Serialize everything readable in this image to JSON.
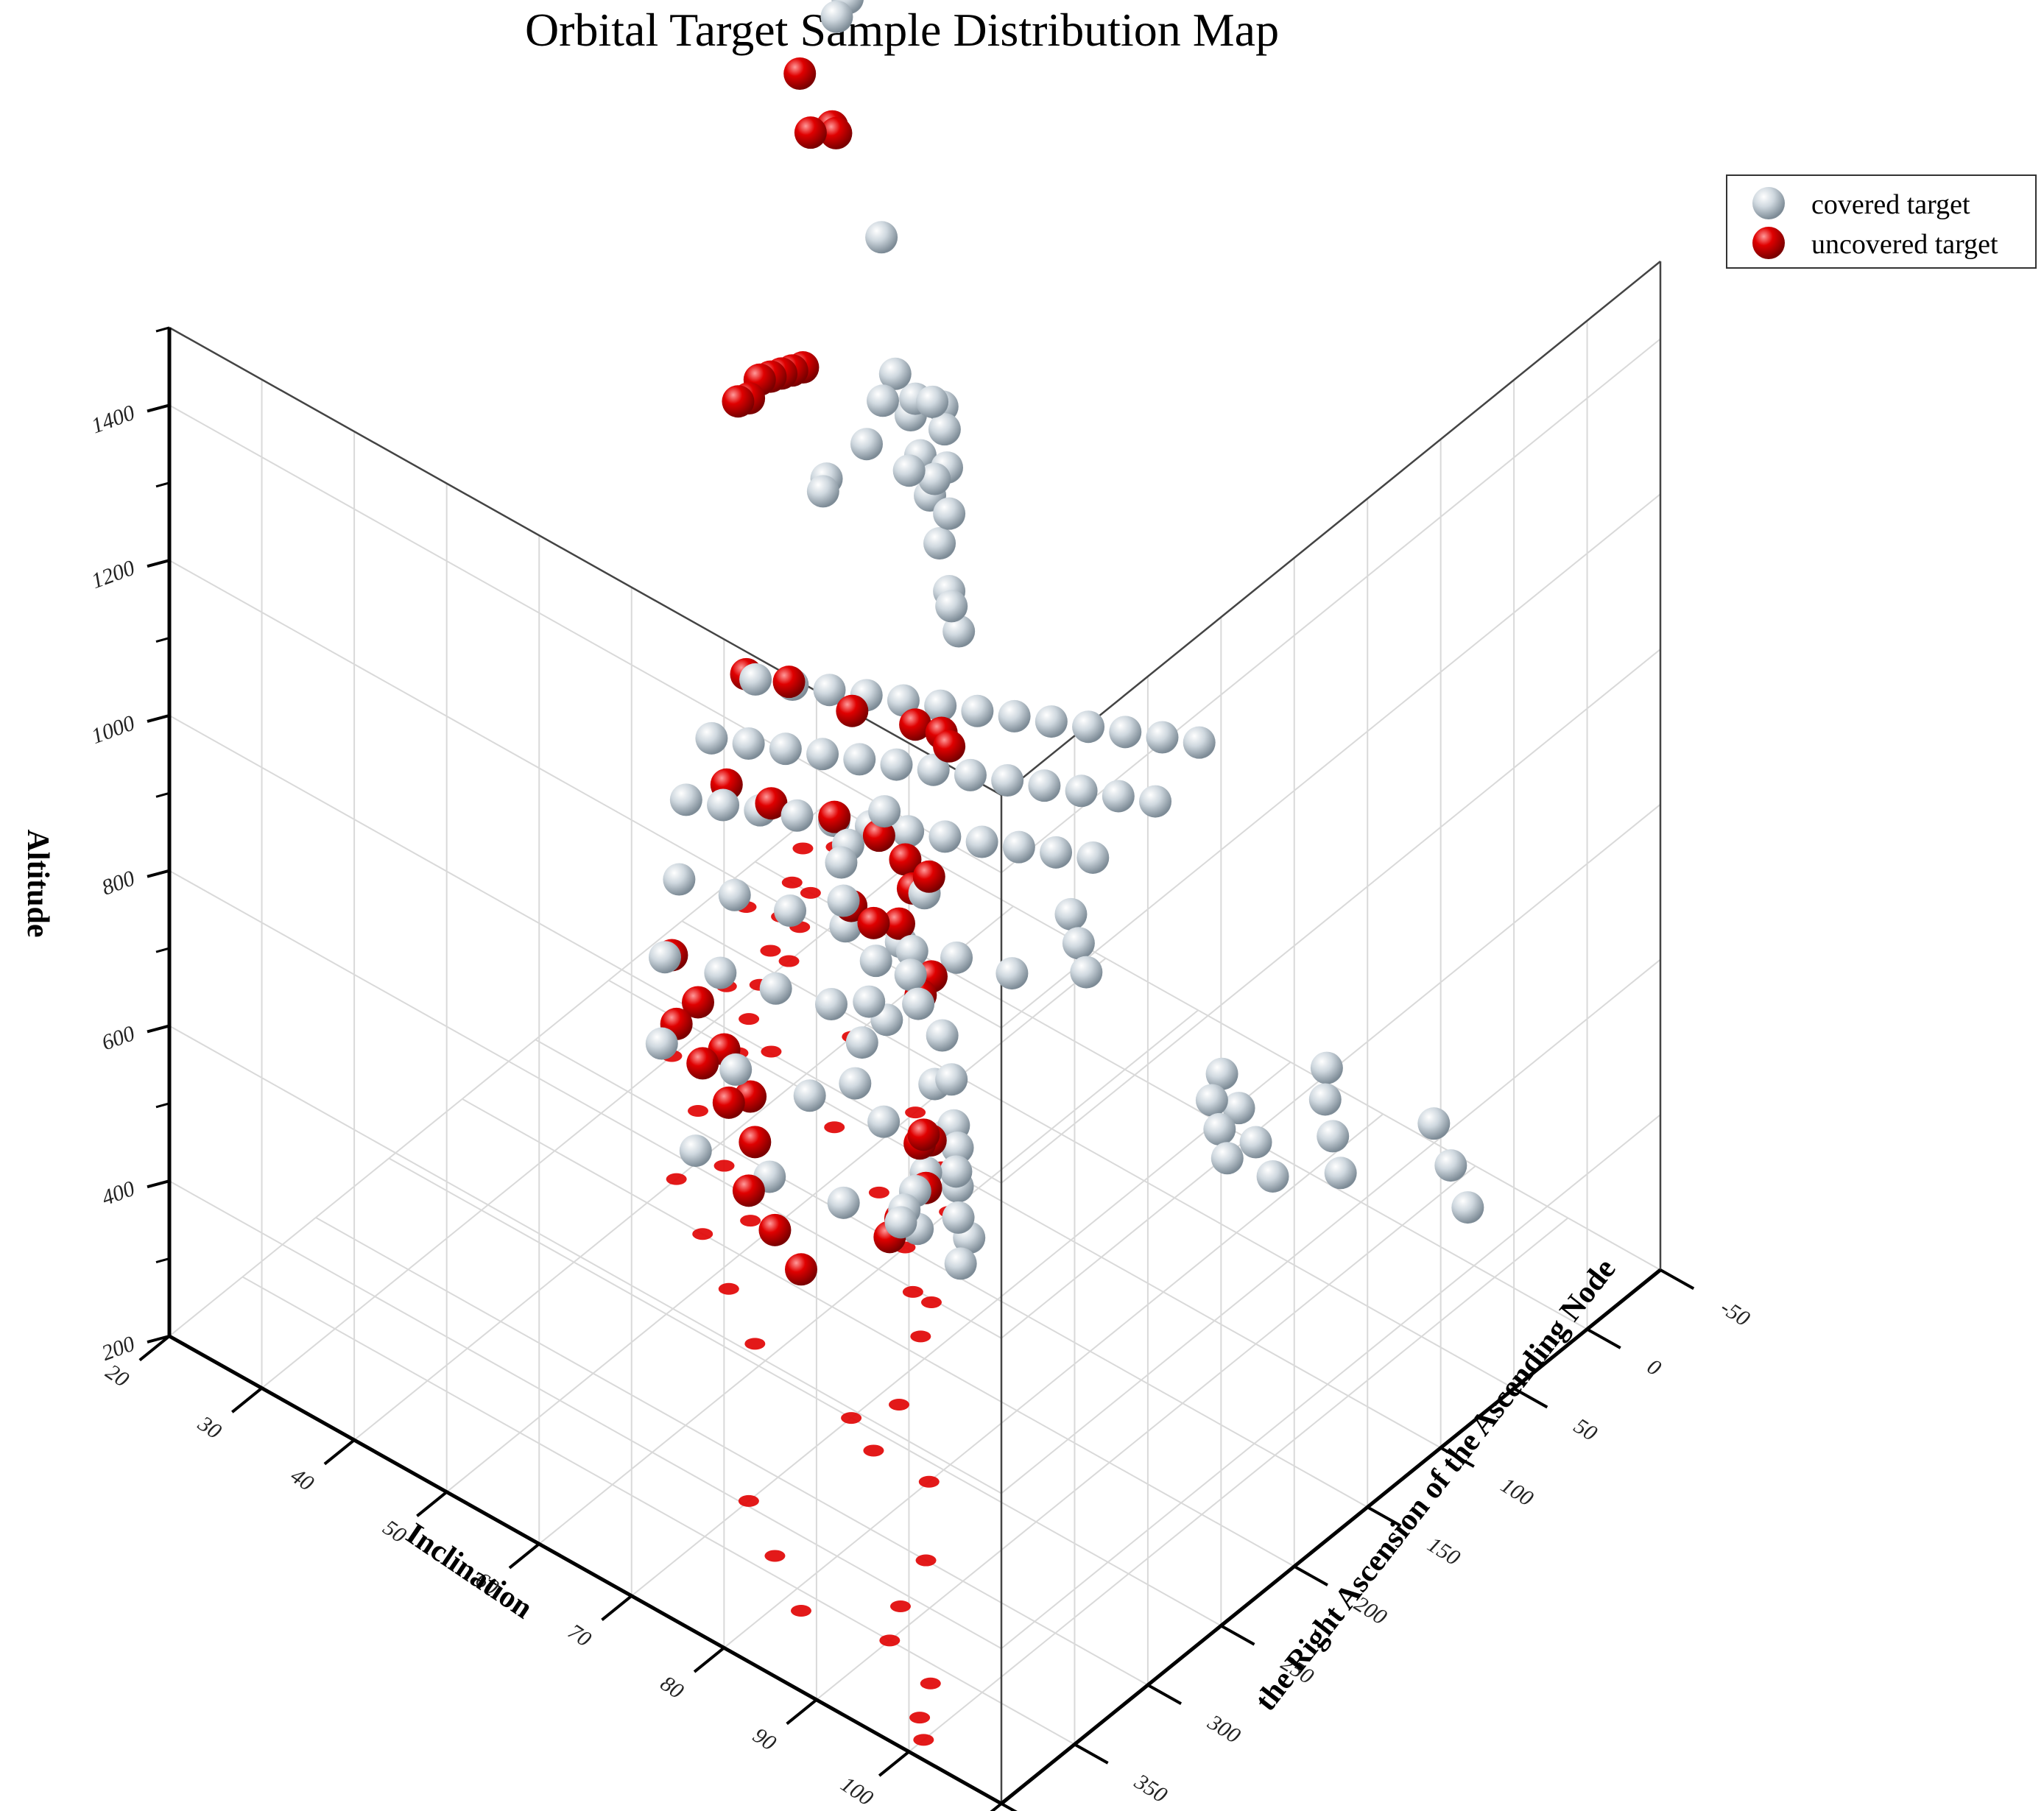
{
  "chart_data": {
    "type": "scatter",
    "subtype": "3d-scatter",
    "title": "Orbital Target Sample Distribution Map",
    "axes": {
      "x": {
        "label": "Inclination",
        "range": [
          20,
          110
        ],
        "ticks": [
          "20",
          "30",
          "40",
          "50",
          "60",
          "70",
          "80",
          "90",
          "100",
          "110"
        ]
      },
      "y": {
        "label": "the Right Ascension of the Ascending Node",
        "range": [
          -50,
          400
        ],
        "ticks": [
          "-50",
          "0",
          "50",
          "100",
          "150",
          "200",
          "250",
          "300",
          "350",
          "400"
        ]
      },
      "z": {
        "label": "Altitude",
        "range": [
          200,
          1500
        ],
        "ticks": [
          "200",
          "400",
          "600",
          "800",
          "1000",
          "1200",
          "1400"
        ]
      }
    },
    "grid": true,
    "legend_position": "top-right",
    "series": [
      {
        "name": "covered target",
        "color": "#c8d3dc",
        "points": [
          [
            24,
            25,
            500
          ],
          [
            28,
            25,
            520
          ],
          [
            32,
            25,
            540
          ],
          [
            36,
            25,
            560
          ],
          [
            40,
            25,
            580
          ],
          [
            44,
            25,
            600
          ],
          [
            48,
            25,
            620
          ],
          [
            52,
            25,
            640
          ],
          [
            56,
            25,
            660
          ],
          [
            60,
            25,
            680
          ],
          [
            64,
            25,
            700
          ],
          [
            68,
            25,
            720
          ],
          [
            72,
            25,
            740
          ],
          [
            24,
            55,
            470
          ],
          [
            28,
            55,
            490
          ],
          [
            32,
            55,
            510
          ],
          [
            36,
            55,
            530
          ],
          [
            40,
            55,
            550
          ],
          [
            44,
            55,
            570
          ],
          [
            48,
            55,
            590
          ],
          [
            52,
            55,
            610
          ],
          [
            56,
            55,
            630
          ],
          [
            60,
            55,
            650
          ],
          [
            64,
            55,
            670
          ],
          [
            68,
            55,
            690
          ],
          [
            72,
            55,
            710
          ],
          [
            26,
            85,
            450
          ],
          [
            30,
            85,
            470
          ],
          [
            34,
            85,
            490
          ],
          [
            38,
            85,
            510
          ],
          [
            42,
            85,
            530
          ],
          [
            46,
            85,
            550
          ],
          [
            50,
            85,
            570
          ],
          [
            54,
            85,
            590
          ],
          [
            58,
            85,
            610
          ],
          [
            62,
            85,
            630
          ],
          [
            66,
            85,
            650
          ],
          [
            70,
            85,
            670
          ],
          [
            30,
            115,
            420
          ],
          [
            36,
            115,
            440
          ],
          [
            42,
            115,
            460
          ],
          [
            48,
            115,
            480
          ],
          [
            54,
            115,
            500
          ],
          [
            60,
            115,
            520
          ],
          [
            66,
            115,
            540
          ],
          [
            34,
            150,
            400
          ],
          [
            40,
            150,
            420
          ],
          [
            46,
            150,
            440
          ],
          [
            52,
            150,
            460
          ],
          [
            58,
            150,
            480
          ],
          [
            64,
            150,
            500
          ],
          [
            40,
            190,
            390
          ],
          [
            48,
            190,
            410
          ],
          [
            56,
            190,
            430
          ],
          [
            64,
            190,
            450
          ],
          [
            72,
            190,
            470
          ],
          [
            50,
            230,
            380
          ],
          [
            58,
            230,
            400
          ],
          [
            66,
            230,
            420
          ],
          [
            74,
            230,
            440
          ],
          [
            30,
            0,
            1380
          ],
          [
            32,
            20,
            1400
          ],
          [
            40,
            40,
            1200
          ],
          [
            50,
            80,
            1120
          ],
          [
            55,
            100,
            1180
          ],
          [
            60,
            130,
            1160
          ],
          [
            62,
            160,
            1230
          ],
          [
            45,
            30,
            1000
          ],
          [
            50,
            60,
            1050
          ],
          [
            55,
            90,
            1080
          ],
          [
            60,
            120,
            1100
          ],
          [
            65,
            150,
            1060
          ],
          [
            40,
            20,
            940
          ],
          [
            45,
            45,
            960
          ],
          [
            50,
            70,
            980
          ],
          [
            55,
            95,
            990
          ],
          [
            60,
            120,
            1000
          ],
          [
            65,
            145,
            1020
          ],
          [
            70,
            220,
            1500
          ],
          [
            75,
            260,
            1560
          ],
          [
            78,
            290,
            1570
          ],
          [
            80,
            330,
            1600
          ],
          [
            82,
            345,
            1620
          ],
          [
            72,
            240,
            980
          ],
          [
            76,
            290,
            1040
          ],
          [
            80,
            320,
            1090
          ],
          [
            85,
            350,
            1120
          ],
          [
            70,
            200,
            800
          ],
          [
            75,
            240,
            820
          ],
          [
            78,
            260,
            840
          ],
          [
            82,
            280,
            860
          ],
          [
            86,
            300,
            700
          ],
          [
            88,
            320,
            720
          ],
          [
            90,
            340,
            740
          ],
          [
            92,
            355,
            760
          ],
          [
            60,
            170,
            600
          ],
          [
            64,
            200,
            620
          ],
          [
            68,
            230,
            640
          ],
          [
            72,
            260,
            660
          ],
          [
            65,
            150,
            450
          ],
          [
            70,
            180,
            470
          ],
          [
            75,
            210,
            490
          ],
          [
            80,
            240,
            510
          ],
          [
            85,
            270,
            530
          ],
          [
            60,
            130,
            380
          ],
          [
            66,
            160,
            400
          ],
          [
            72,
            190,
            420
          ],
          [
            78,
            220,
            440
          ],
          [
            80,
            60,
            420
          ],
          [
            85,
            80,
            440
          ],
          [
            90,
            100,
            460
          ],
          [
            95,
            120,
            480
          ],
          [
            85,
            20,
            400
          ],
          [
            88,
            40,
            410
          ],
          [
            92,
            60,
            420
          ],
          [
            96,
            80,
            430
          ],
          [
            95,
            10,
            380
          ],
          [
            100,
            30,
            390
          ],
          [
            105,
            50,
            400
          ],
          [
            90,
            130,
            560
          ],
          [
            94,
            150,
            580
          ],
          [
            98,
            170,
            600
          ],
          [
            70,
            100,
            620
          ],
          [
            74,
            120,
            640
          ],
          [
            78,
            140,
            660
          ]
        ]
      },
      {
        "name": "uncovered target",
        "color": "#e00000",
        "points": [
          [
            23,
            25,
            500
          ],
          [
            30,
            40,
            560
          ],
          [
            40,
            60,
            620
          ],
          [
            50,
            80,
            700
          ],
          [
            56,
            100,
            760
          ],
          [
            60,
            120,
            800
          ],
          [
            28,
            70,
            460
          ],
          [
            36,
            90,
            520
          ],
          [
            46,
            110,
            600
          ],
          [
            54,
            130,
            660
          ],
          [
            60,
            150,
            700
          ],
          [
            64,
            170,
            720
          ],
          [
            70,
            250,
            860
          ],
          [
            72,
            230,
            820
          ],
          [
            74,
            260,
            880
          ],
          [
            68,
            190,
            640
          ],
          [
            66,
            170,
            620
          ],
          [
            88,
            330,
            700
          ],
          [
            86,
            300,
            680
          ],
          [
            90,
            350,
            720
          ],
          [
            80,
            260,
            980
          ],
          [
            22,
            -20,
            820
          ],
          [
            24,
            0,
            860
          ],
          [
            26,
            20,
            900
          ],
          [
            28,
            40,
            940
          ],
          [
            30,
            60,
            980
          ],
          [
            32,
            80,
            1000
          ],
          [
            34,
            100,
            1040
          ],
          [
            22,
            -40,
            1100
          ],
          [
            24,
            -30,
            1120
          ],
          [
            26,
            0,
            1180
          ],
          [
            28,
            20,
            1300
          ],
          [
            40,
            180,
            400
          ],
          [
            46,
            200,
            420
          ],
          [
            52,
            220,
            440
          ],
          [
            58,
            240,
            460
          ],
          [
            30,
            120,
            330
          ],
          [
            36,
            140,
            340
          ],
          [
            42,
            160,
            350
          ],
          [
            48,
            180,
            360
          ],
          [
            70,
            320,
            600
          ],
          [
            76,
            340,
            620
          ],
          [
            82,
            360,
            640
          ],
          [
            96,
            360,
            900
          ],
          [
            98,
            380,
            940
          ],
          [
            100,
            390,
            980
          ]
        ]
      }
    ]
  },
  "legend": {
    "items": [
      {
        "label": "covered target",
        "color": "#c8d3dc"
      },
      {
        "label": "uncovered target",
        "color": "#e00000"
      }
    ]
  }
}
